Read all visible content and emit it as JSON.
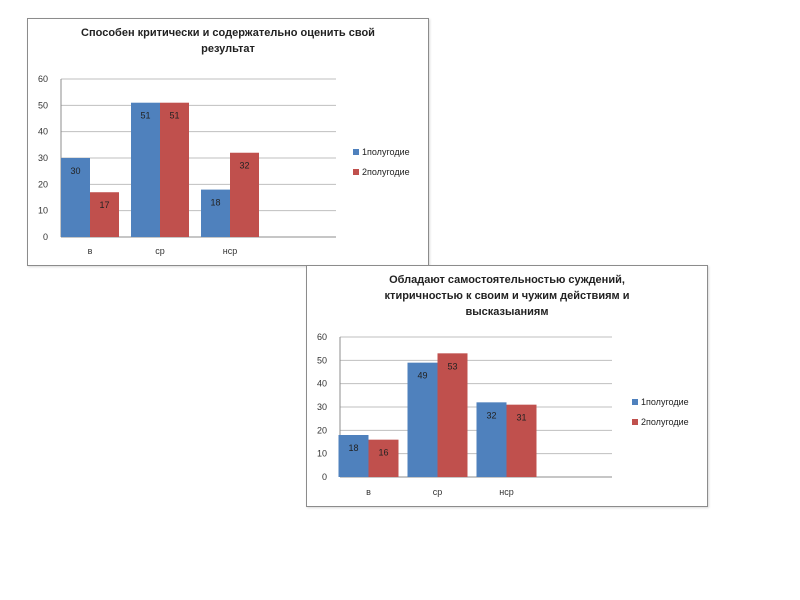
{
  "chart_data": [
    {
      "type": "bar",
      "title_lines": [
        "Способен критически и содержательно оценить свой",
        "результат"
      ],
      "categories": [
        "в",
        "ср",
        "нср"
      ],
      "series": [
        {
          "name": "1полугодие",
          "values": [
            30,
            51,
            18
          ],
          "color": "#4f81bd"
        },
        {
          "name": "2полугодие",
          "values": [
            17,
            51,
            32
          ],
          "color": "#c0504d"
        }
      ],
      "y_ticks": [
        "0",
        "10",
        "20",
        "30",
        "40",
        "50",
        "60"
      ],
      "ylim": [
        0,
        60
      ],
      "grid": true,
      "legend_position": "right"
    },
    {
      "type": "bar",
      "title_lines": [
        "Обладают самостоятельностью суждений,",
        "ктиричностью к своим и чужим действиям и",
        "высказыаниям"
      ],
      "categories": [
        "в",
        "ср",
        "нср"
      ],
      "series": [
        {
          "name": "1полугодие",
          "values": [
            18,
            49,
            32
          ],
          "color": "#4f81bd"
        },
        {
          "name": "2полугодие",
          "values": [
            16,
            53,
            31
          ],
          "color": "#c0504d"
        }
      ],
      "y_ticks": [
        "0",
        "10",
        "20",
        "30",
        "40",
        "50",
        "60"
      ],
      "ylim": [
        0,
        60
      ],
      "grid": true,
      "legend_position": "right"
    }
  ]
}
